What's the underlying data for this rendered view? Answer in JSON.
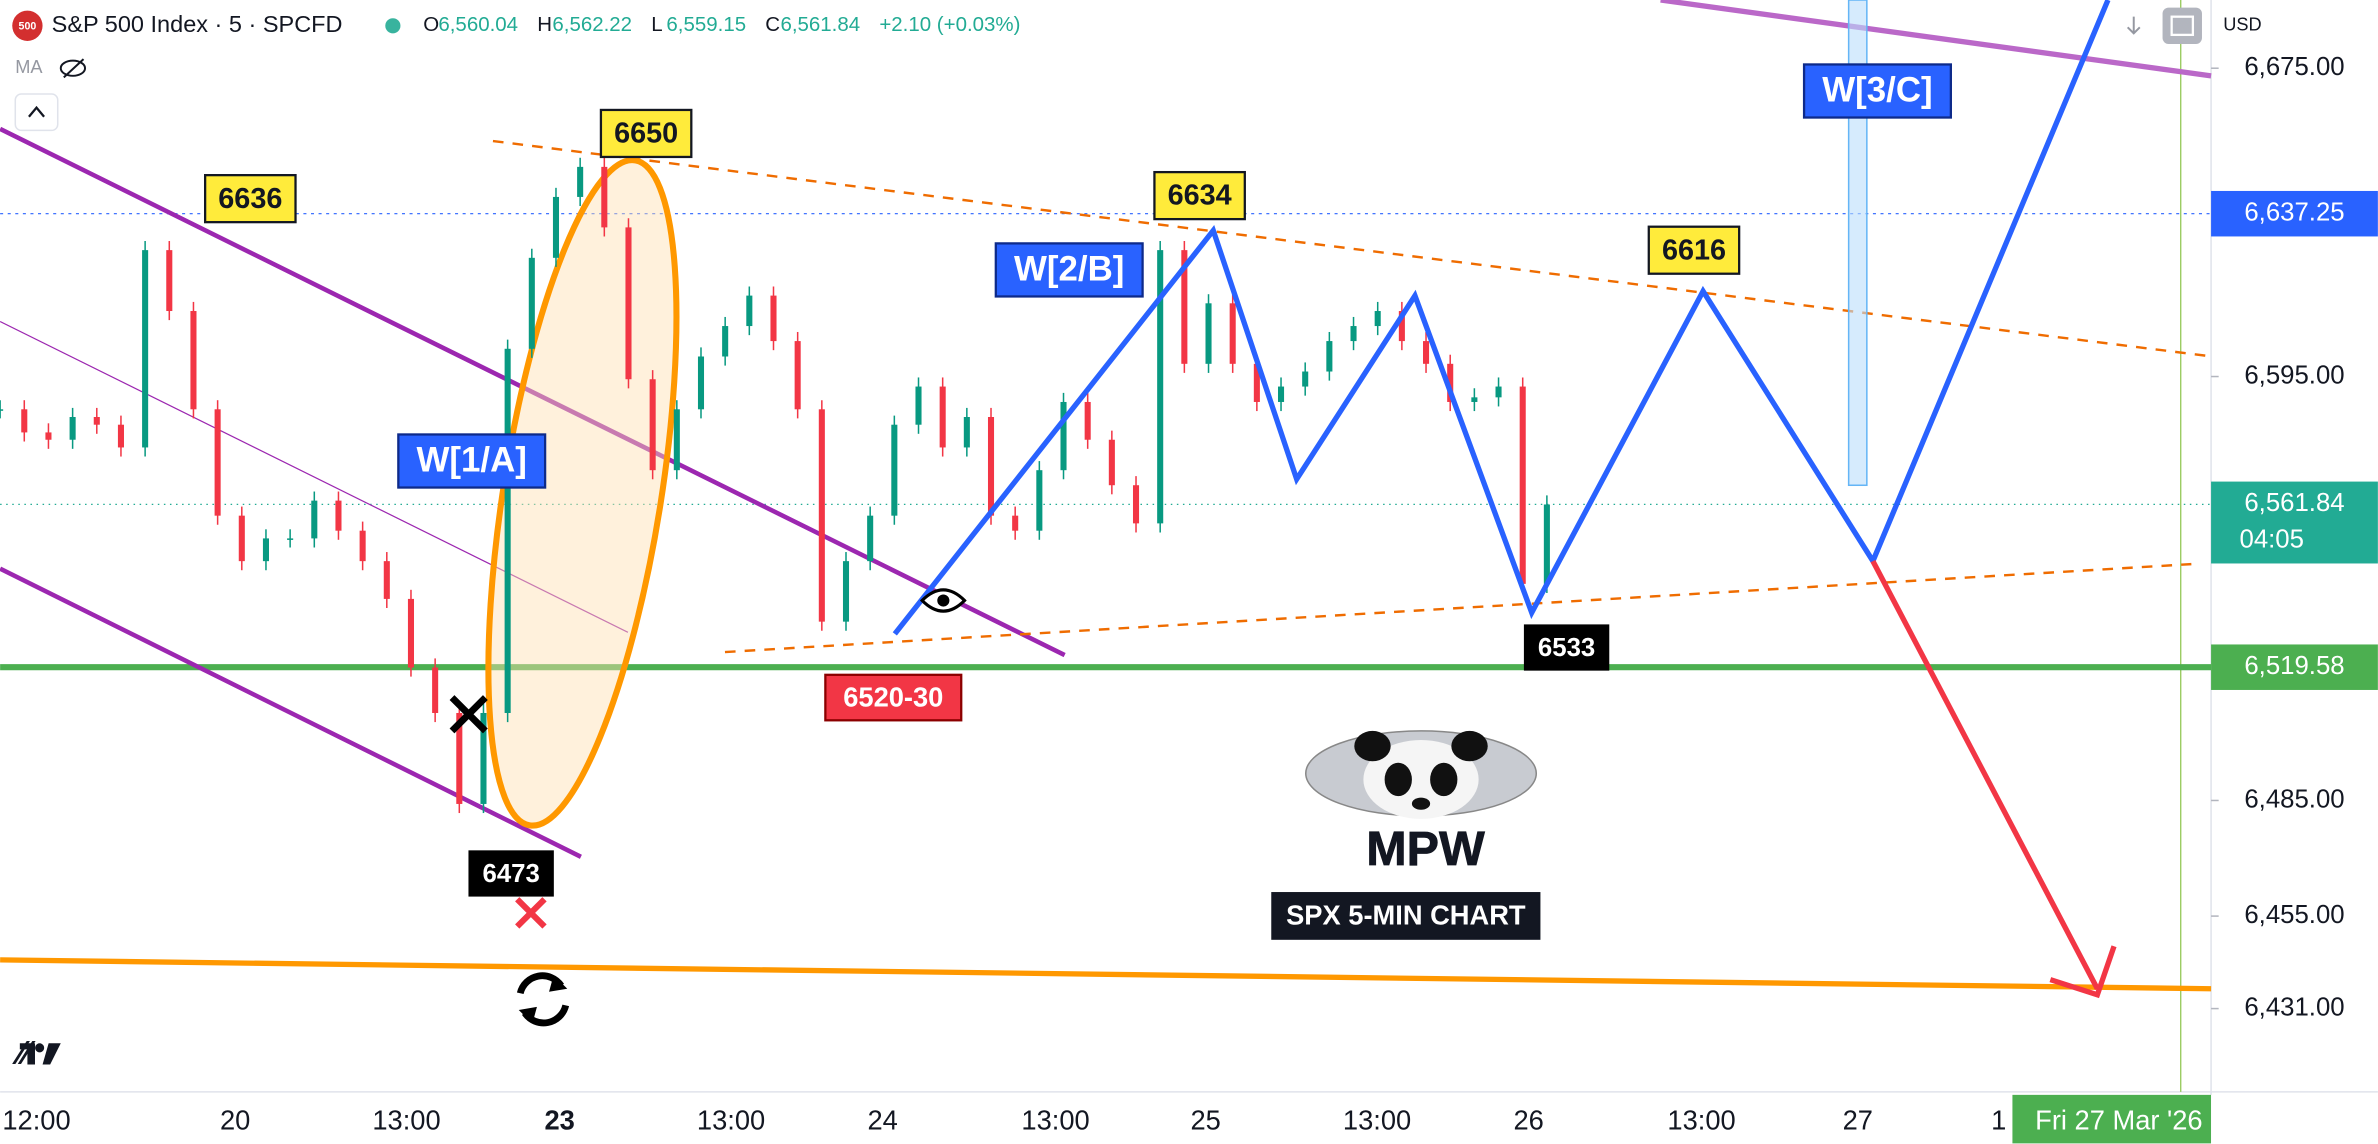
{
  "header": {
    "badge": "500",
    "symbol": "S&P 500 Index · 5 · SPCFD",
    "ohlc": [
      {
        "key": "O",
        "value": "6,560.04"
      },
      {
        "key": "H",
        "value": "6,562.22"
      },
      {
        "key": "L",
        "value": "6,559.15"
      },
      {
        "key": "C",
        "value": "6,561.84"
      }
    ],
    "change": "+2.10 (+0.03%)",
    "indicator": "MA",
    "currency": "USD"
  },
  "price_axis": {
    "ylim": [
      6409.4,
      6692.7
    ],
    "ticks": [
      {
        "value": 6675,
        "label": "6,675.00"
      },
      {
        "value": 6595,
        "label": "6,595.00"
      },
      {
        "value": 6485,
        "label": "6,485.00"
      },
      {
        "value": 6455,
        "label": "6,455.00"
      },
      {
        "value": 6431,
        "label": "6,431.00"
      }
    ],
    "tags": [
      {
        "value": 6637.25,
        "label": "6,637.25",
        "color": "#2962ff"
      },
      {
        "value": 6561.84,
        "label": "6,561.84",
        "countdown": "04:05",
        "color": "#22ab94"
      },
      {
        "value": 6519.58,
        "label": "6,519.58",
        "color": "#4caf50"
      }
    ]
  },
  "time_axis": {
    "labels": [
      "12:00",
      "20",
      "13:00",
      "23",
      "13:00",
      "24",
      "13:00",
      "25",
      "13:00",
      "26",
      "13:00",
      "27",
      "1"
    ],
    "cursor_label": "Fri 27 Mar '26"
  },
  "price_closes": [
    6586.5,
    6580.5,
    6578.6,
    6584.5,
    6582.5,
    6576.6,
    6627.8,
    6612.0,
    6586.5,
    6558.9,
    6547.1,
    6553.0,
    6553.0,
    6562.8,
    6555.0,
    6547.1,
    6537.3,
    6519.5,
    6507.7,
    6484.1,
    6507.7,
    6602.2,
    6625.8,
    6641.6,
    6649.4,
    6633.7,
    6594.3,
    6570.7,
    6586.5,
    6600.2,
    6608.1,
    6616.0,
    6604.2,
    6586.5,
    6531.4,
    6547.1,
    6558.9,
    6582.5,
    6592.4,
    6576.6,
    6584.5,
    6558.9,
    6555.0,
    6570.7,
    6588.4,
    6578.6,
    6566.8,
    6556.9,
    6627.8,
    6598.3,
    6614.0,
    6598.3,
    6588.4,
    6592.4,
    6596.3,
    6604.2,
    6608.1,
    6612.0,
    6604.2,
    6598.3,
    6588.4,
    6589.6,
    6592.4,
    6541.2,
    6561.8
  ],
  "annotations": {
    "peaks": [
      "6636",
      "6650",
      "6634",
      "6616"
    ],
    "waves": [
      "W[1/A]",
      "W[2/B]",
      "W[3/C]"
    ],
    "lows": [
      "6473",
      "6533"
    ],
    "zone": "6520-30",
    "brand": "MPW",
    "caption": "SPX 5-MIN CHART"
  }
}
